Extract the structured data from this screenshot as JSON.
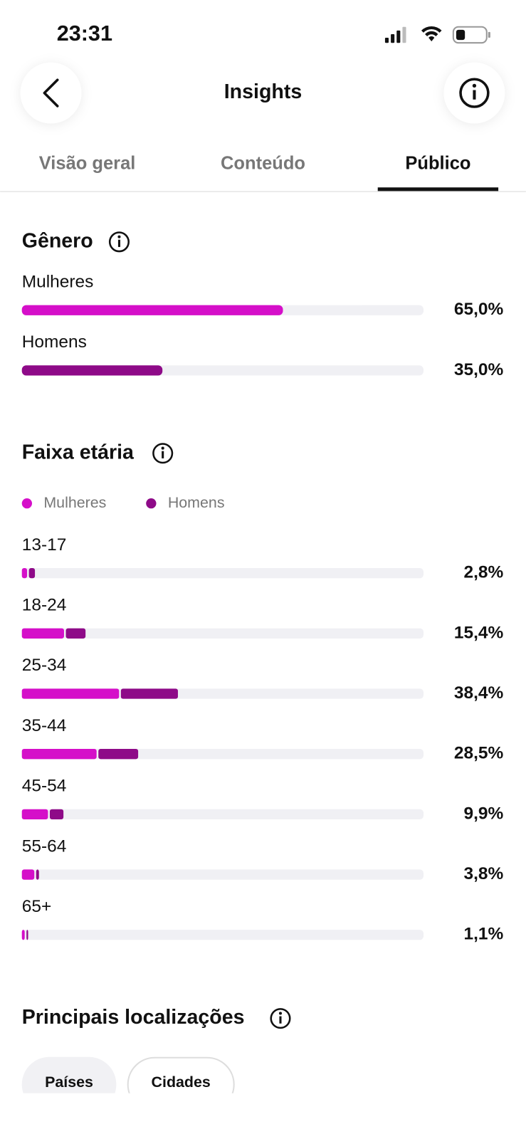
{
  "status_bar": {
    "time": "23:31"
  },
  "header": {
    "title": "Insights"
  },
  "tabs": [
    "Visão geral",
    "Conteúdo",
    "Público"
  ],
  "gender": {
    "title": "Gênero",
    "rows": [
      {
        "label": "Mulheres",
        "value": 65.0,
        "value_label": "65,0%",
        "color": "#d50fc9"
      },
      {
        "label": "Homens",
        "value": 35.0,
        "value_label": "35,0%",
        "color": "#8e0a88"
      }
    ]
  },
  "age": {
    "title": "Faixa etária",
    "legend": [
      {
        "name": "Mulheres",
        "color": "#d50fc9"
      },
      {
        "name": "Homens",
        "color": "#8e0a88"
      }
    ],
    "rows": [
      {
        "label": "13-17",
        "women": 1.3,
        "men": 1.5,
        "total_label": "2,8%"
      },
      {
        "label": "18-24",
        "women": 10.5,
        "men": 4.9,
        "total_label": "15,4%"
      },
      {
        "label": "25-34",
        "women": 24.2,
        "men": 14.2,
        "total_label": "38,4%"
      },
      {
        "label": "35-44",
        "women": 18.6,
        "men": 9.9,
        "total_label": "28,5%"
      },
      {
        "label": "45-54",
        "women": 6.5,
        "men": 3.4,
        "total_label": "9,9%"
      },
      {
        "label": "55-64",
        "women": 3.1,
        "men": 0.7,
        "total_label": "3,8%"
      },
      {
        "label": "65+",
        "women": 0.7,
        "men": 0.4,
        "total_label": "1,1%"
      }
    ]
  },
  "locations": {
    "title": "Principais localizações",
    "pills": [
      "Países",
      "Cidades"
    ]
  }
}
